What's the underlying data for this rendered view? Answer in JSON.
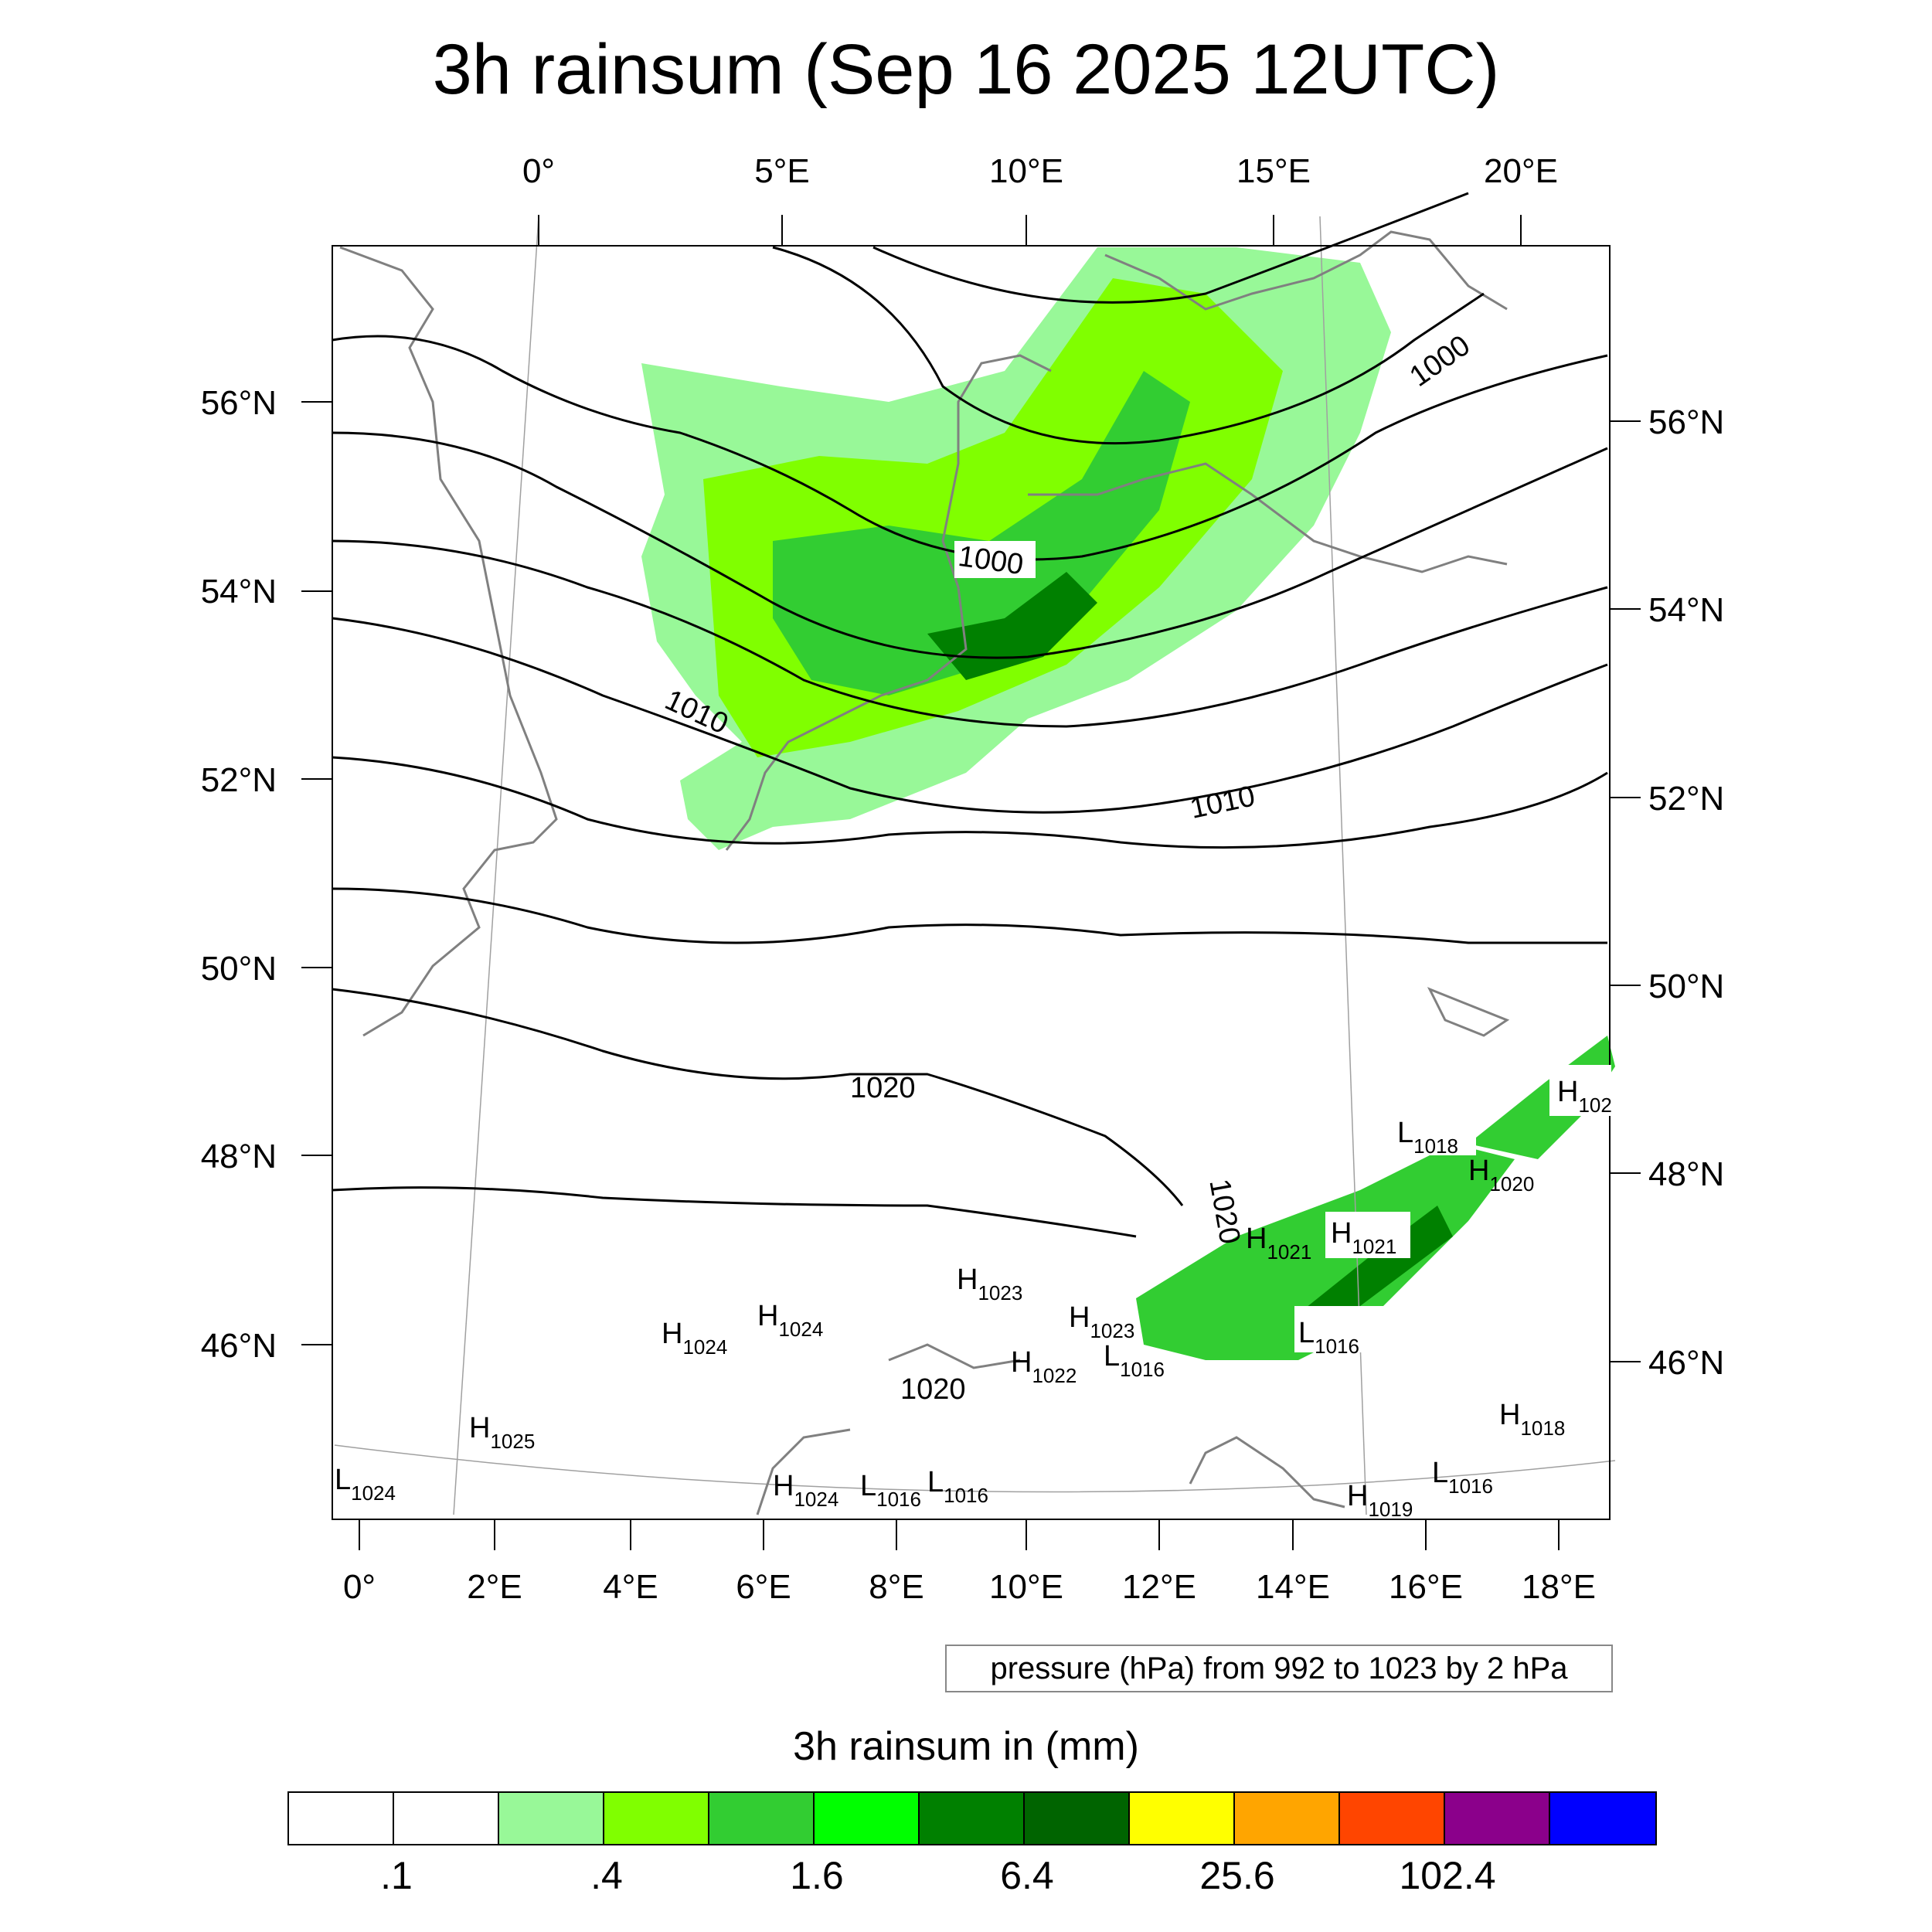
{
  "title": "3h rainsum (Sep 16 2025 12UTC)",
  "top_lon_labels": [
    "0°",
    "5°E",
    "10°E",
    "15°E",
    "20°E"
  ],
  "bottom_lon_labels": [
    "0°",
    "2°E",
    "4°E",
    "6°E",
    "8°E",
    "10°E",
    "12°E",
    "14°E",
    "16°E",
    "18°E"
  ],
  "left_lat_labels": [
    "56°N",
    "54°N",
    "52°N",
    "50°N",
    "48°N",
    "46°N"
  ],
  "right_lat_labels": [
    "56°N",
    "54°N",
    "52°N",
    "50°N",
    "48°N",
    "46°N"
  ],
  "contour_labels": [
    "1000",
    "1000",
    "1010",
    "1010",
    "1020",
    "1020",
    "1020"
  ],
  "pressure_centers": [
    {
      "type": "H",
      "value": "102"
    },
    {
      "type": "L",
      "value": "1018"
    },
    {
      "type": "H",
      "value": "1020"
    },
    {
      "type": "H",
      "value": "1021"
    },
    {
      "type": "H",
      "value": "1021"
    },
    {
      "type": "H",
      "value": "1023"
    },
    {
      "type": "H",
      "value": "1024"
    },
    {
      "type": "H",
      "value": "1024"
    },
    {
      "type": "H",
      "value": "1023"
    },
    {
      "type": "L",
      "value": "1016"
    },
    {
      "type": "L",
      "value": "1016"
    },
    {
      "type": "H",
      "value": "1022"
    },
    {
      "type": "H",
      "value": "1025"
    },
    {
      "type": "L",
      "value": "1024"
    },
    {
      "type": "H",
      "value": "1024"
    },
    {
      "type": "L",
      "value": "1016"
    },
    {
      "type": "L",
      "value": "1016"
    },
    {
      "type": "H",
      "value": "1019"
    },
    {
      "type": "L",
      "value": "1016"
    },
    {
      "type": "H",
      "value": "1018"
    }
  ],
  "info_box": "pressure (hPa) from 992 to 1023 by 2 hPa",
  "colorbar": {
    "title": "3h rainsum in (mm)",
    "colors": [
      "#ffffff",
      "#ffffff",
      "#98f898",
      "#80ff00",
      "#32cd32",
      "#00ff00",
      "#008000",
      "#006400",
      "#ffff00",
      "#ffa500",
      "#ff4500",
      "#8b008b",
      "#0000ff"
    ],
    "labels": [
      ".1",
      ".4",
      "1.6",
      "6.4",
      "25.6",
      "102.4"
    ]
  }
}
